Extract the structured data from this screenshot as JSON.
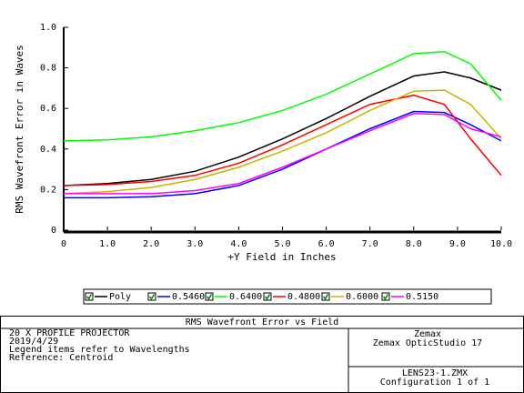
{
  "chart_data": {
    "type": "line",
    "title": "RMS Wavefront Error vs Field",
    "x_label": "+Y Field in Inches",
    "y_label": "RMS Wavefront Error in Waves",
    "x": [
      0,
      1,
      2,
      3,
      4,
      5,
      6,
      7,
      8,
      8.7,
      9.3,
      10
    ],
    "xlim": [
      0,
      10
    ],
    "ylim": [
      0,
      1
    ],
    "xticks": [
      0,
      {
        "value": 1,
        "label": "1.0"
      },
      {
        "value": 2,
        "label": "2.0"
      },
      {
        "value": 3,
        "label": "3.0"
      },
      {
        "value": 4,
        "label": "4.0"
      },
      {
        "value": 5,
        "label": "5.0"
      },
      {
        "value": 6,
        "label": "6.0"
      },
      {
        "value": 7,
        "label": "7.0"
      },
      {
        "value": 8,
        "label": "8.0"
      },
      {
        "value": 9,
        "label": "9.0"
      },
      {
        "value": 10,
        "label": "10.0"
      }
    ],
    "yticks": [
      0,
      0.2,
      0.4,
      0.6,
      0.8,
      {
        "value": 1,
        "label": "1.0"
      }
    ],
    "series": [
      {
        "name": "Poly",
        "color": "#000000",
        "values": [
          0.22,
          0.23,
          0.25,
          0.29,
          0.36,
          0.45,
          0.55,
          0.66,
          0.76,
          0.78,
          0.75,
          0.69
        ]
      },
      {
        "name": "0.5460",
        "color": "#0000ff",
        "values": [
          0.16,
          0.16,
          0.165,
          0.18,
          0.22,
          0.3,
          0.4,
          0.5,
          0.585,
          0.58,
          0.52,
          0.44
        ]
      },
      {
        "name": "0.6400",
        "color": "#00ff00",
        "values": [
          0.44,
          0.445,
          0.46,
          0.49,
          0.53,
          0.59,
          0.67,
          0.77,
          0.87,
          0.88,
          0.82,
          0.64
        ]
      },
      {
        "name": "0.4800",
        "color": "#ff0000",
        "values": [
          0.22,
          0.225,
          0.24,
          0.27,
          0.33,
          0.42,
          0.52,
          0.62,
          0.665,
          0.62,
          0.45,
          0.27
        ]
      },
      {
        "name": "0.6000",
        "color": "#c8b400",
        "values": [
          0.18,
          0.19,
          0.21,
          0.25,
          0.31,
          0.39,
          0.48,
          0.59,
          0.685,
          0.69,
          0.62,
          0.45
        ]
      },
      {
        "name": "0.5150",
        "color": "#ff00ff",
        "values": [
          0.18,
          0.18,
          0.18,
          0.195,
          0.23,
          0.31,
          0.4,
          0.49,
          0.575,
          0.57,
          0.5,
          0.46
        ]
      }
    ]
  },
  "footer": {
    "left_lines": [
      "20 X PROFILE PROJECTOR",
      "2019/4/29",
      "Legend items refer to Wavelengths",
      "Reference: Centroid"
    ],
    "right_top": [
      "Zemax",
      "Zemax OpticStudio 17"
    ],
    "right_bottom": [
      "LENS23-1.ZMX",
      "Configuration 1 of 1"
    ]
  }
}
